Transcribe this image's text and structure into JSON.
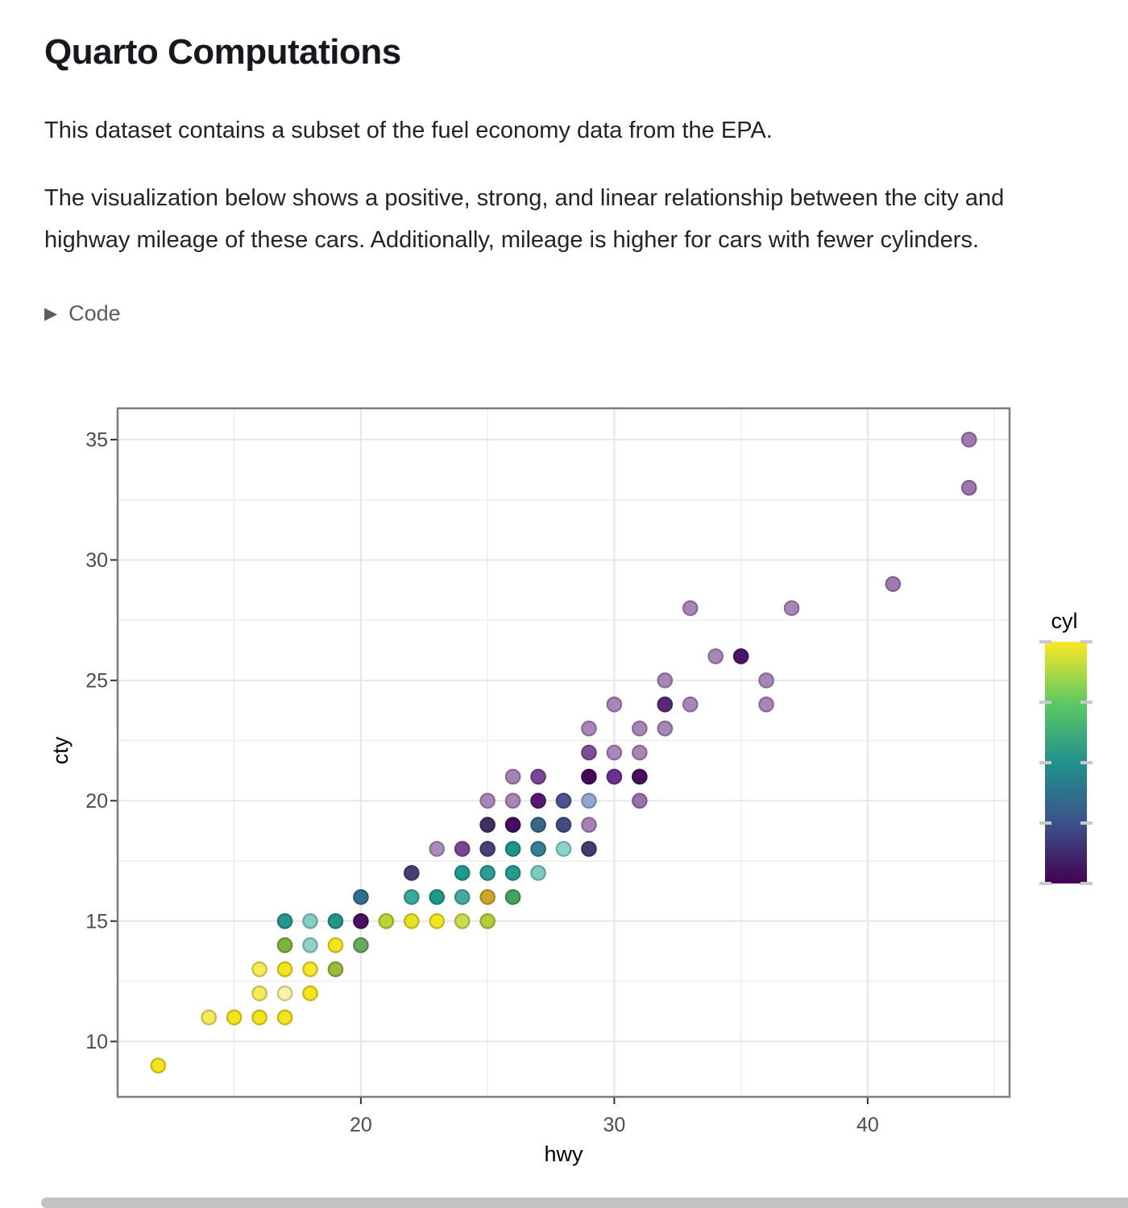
{
  "page": {
    "title": "Quarto Computations",
    "paragraph1": "This dataset contains a subset of the fuel economy data from the EPA.",
    "paragraph2": "The visualization below shows a positive, strong, and linear relationship between the city and highway mileage of these cars. Additionally, mileage is higher for cars with fewer cylinders.",
    "code_toggle_label": "Code",
    "code_toggle_icon": "▶"
  },
  "chart_data": {
    "type": "scatter",
    "title": "",
    "xlabel": "hwy",
    "ylabel": "cty",
    "x_domain": [
      10.4,
      45.6
    ],
    "y_domain": [
      7.7,
      36.3
    ],
    "x_ticks": [
      20,
      30,
      40
    ],
    "y_ticks": [
      10,
      15,
      20,
      25,
      30,
      35
    ],
    "x_minor": [
      15,
      25,
      35,
      45
    ],
    "y_minor": [
      12.5,
      17.5,
      22.5,
      27.5,
      32.5
    ],
    "grid": "on",
    "legend": {
      "title": "cyl",
      "position": "right",
      "ticks": [
        4,
        5,
        6,
        7,
        8
      ],
      "gradient_bottom_to_top": [
        "#440154",
        "#3b528b",
        "#21918c",
        "#5ec962",
        "#fde725"
      ]
    },
    "colors": {
      "major_grid": "#e6e6e6",
      "minor_grid": "#f1f1f1",
      "panel_border": "#7d7d7d",
      "tick_mark": "#333333",
      "tick_label": "#4d4d4d",
      "legend_tick": "#c9c9c9"
    },
    "points": [
      {
        "hwy": 12,
        "cty": 9,
        "c": "#f4e41c"
      },
      {
        "hwy": 14,
        "cty": 11,
        "c": "#f6e95e"
      },
      {
        "hwy": 15,
        "cty": 11,
        "c": "#f4e41c"
      },
      {
        "hwy": 16,
        "cty": 11,
        "c": "#f4e41c"
      },
      {
        "hwy": 17,
        "cty": 11,
        "c": "#f4e41c"
      },
      {
        "hwy": 16,
        "cty": 12,
        "c": "#f6e95e"
      },
      {
        "hwy": 17,
        "cty": 12,
        "c": "#f9f1a3"
      },
      {
        "hwy": 18,
        "cty": 12,
        "c": "#f4e41c"
      },
      {
        "hwy": 16,
        "cty": 13,
        "c": "#f7ea57"
      },
      {
        "hwy": 17,
        "cty": 13,
        "c": "#f4e41c"
      },
      {
        "hwy": 18,
        "cty": 13,
        "c": "#f5e62e"
      },
      {
        "hwy": 19,
        "cty": 13,
        "c": "#9cb93c"
      },
      {
        "hwy": 17,
        "cty": 14,
        "c": "#7fb13e"
      },
      {
        "hwy": 18,
        "cty": 14,
        "c": "#8fd0c8"
      },
      {
        "hwy": 19,
        "cty": 14,
        "c": "#f4e41c"
      },
      {
        "hwy": 20,
        "cty": 14,
        "c": "#67a95e"
      },
      {
        "hwy": 17,
        "cty": 15,
        "c": "#27968b"
      },
      {
        "hwy": 18,
        "cty": 15,
        "c": "#85ccc5"
      },
      {
        "hwy": 19,
        "cty": 15,
        "c": "#21958a"
      },
      {
        "hwy": 20,
        "cty": 15,
        "c": "#4a1161"
      },
      {
        "hwy": 21,
        "cty": 15,
        "c": "#b9d434"
      },
      {
        "hwy": 22,
        "cty": 15,
        "c": "#e8e223"
      },
      {
        "hwy": 23,
        "cty": 15,
        "c": "#f2e41f"
      },
      {
        "hwy": 24,
        "cty": 15,
        "c": "#cbdb4d"
      },
      {
        "hwy": 25,
        "cty": 15,
        "c": "#b2cd39"
      },
      {
        "hwy": 20,
        "cty": 16,
        "c": "#2f6f8e"
      },
      {
        "hwy": 22,
        "cty": 16,
        "c": "#3aa99b"
      },
      {
        "hwy": 23,
        "cty": 16,
        "c": "#1f9a89"
      },
      {
        "hwy": 24,
        "cty": 16,
        "c": "#45aa9d"
      },
      {
        "hwy": 25,
        "cty": 16,
        "c": "#cfa52e"
      },
      {
        "hwy": 26,
        "cty": 16,
        "c": "#44a25c"
      },
      {
        "hwy": 22,
        "cty": 17,
        "c": "#463e73"
      },
      {
        "hwy": 24,
        "cty": 17,
        "c": "#1f9a8e"
      },
      {
        "hwy": 25,
        "cty": 17,
        "c": "#2b9e94"
      },
      {
        "hwy": 26,
        "cty": 17,
        "c": "#269a90"
      },
      {
        "hwy": 27,
        "cty": 17,
        "c": "#7bcbbf"
      },
      {
        "hwy": 23,
        "cty": 18,
        "c": "#ab8abc"
      },
      {
        "hwy": 24,
        "cty": 18,
        "c": "#7d4394"
      },
      {
        "hwy": 25,
        "cty": 18,
        "c": "#4a3f7d"
      },
      {
        "hwy": 26,
        "cty": 18,
        "c": "#1f958a"
      },
      {
        "hwy": 27,
        "cty": 18,
        "c": "#357f93"
      },
      {
        "hwy": 28,
        "cty": 18,
        "c": "#8ad3c8"
      },
      {
        "hwy": 29,
        "cty": 18,
        "c": "#453a72"
      },
      {
        "hwy": 25,
        "cty": 19,
        "c": "#403061"
      },
      {
        "hwy": 26,
        "cty": 19,
        "c": "#470c5e"
      },
      {
        "hwy": 27,
        "cty": 19,
        "c": "#36688a"
      },
      {
        "hwy": 28,
        "cty": 19,
        "c": "#414d80"
      },
      {
        "hwy": 29,
        "cty": 19,
        "c": "#a583b3"
      },
      {
        "hwy": 25,
        "cty": 20,
        "c": "#a886b8"
      },
      {
        "hwy": 26,
        "cty": 20,
        "c": "#a886b8"
      },
      {
        "hwy": 27,
        "cty": 20,
        "c": "#561a72"
      },
      {
        "hwy": 28,
        "cty": 20,
        "c": "#4f5191"
      },
      {
        "hwy": 29,
        "cty": 20,
        "c": "#92a7cf"
      },
      {
        "hwy": 31,
        "cty": 20,
        "c": "#9a6fae"
      },
      {
        "hwy": 26,
        "cty": 21,
        "c": "#a583b5"
      },
      {
        "hwy": 27,
        "cty": 21,
        "c": "#7a4596"
      },
      {
        "hwy": 29,
        "cty": 21,
        "c": "#45095c"
      },
      {
        "hwy": 30,
        "cty": 21,
        "c": "#6b3090"
      },
      {
        "hwy": 31,
        "cty": 21,
        "c": "#470e5e"
      },
      {
        "hwy": 29,
        "cty": 22,
        "c": "#7e4f96"
      },
      {
        "hwy": 30,
        "cty": 22,
        "c": "#a886b8"
      },
      {
        "hwy": 31,
        "cty": 22,
        "c": "#a886b8"
      },
      {
        "hwy": 29,
        "cty": 23,
        "c": "#a886b8"
      },
      {
        "hwy": 31,
        "cty": 23,
        "c": "#a886b8"
      },
      {
        "hwy": 32,
        "cty": 23,
        "c": "#a886b8"
      },
      {
        "hwy": 30,
        "cty": 24,
        "c": "#a886b8"
      },
      {
        "hwy": 32,
        "cty": 24,
        "c": "#5a2a78"
      },
      {
        "hwy": 33,
        "cty": 24,
        "c": "#a886b8"
      },
      {
        "hwy": 36,
        "cty": 24,
        "c": "#a886b8"
      },
      {
        "hwy": 32,
        "cty": 25,
        "c": "#a886b8"
      },
      {
        "hwy": 36,
        "cty": 25,
        "c": "#a886b8"
      },
      {
        "hwy": 34,
        "cty": 26,
        "c": "#a886b8"
      },
      {
        "hwy": 35,
        "cty": 26,
        "c": "#4b1566"
      },
      {
        "hwy": 33,
        "cty": 28,
        "c": "#a886b8"
      },
      {
        "hwy": 37,
        "cty": 28,
        "c": "#a886b8"
      },
      {
        "hwy": 41,
        "cty": 29,
        "c": "#a079b1"
      },
      {
        "hwy": 44,
        "cty": 33,
        "c": "#9d76ae"
      },
      {
        "hwy": 44,
        "cty": 35,
        "c": "#a079b1"
      }
    ]
  }
}
